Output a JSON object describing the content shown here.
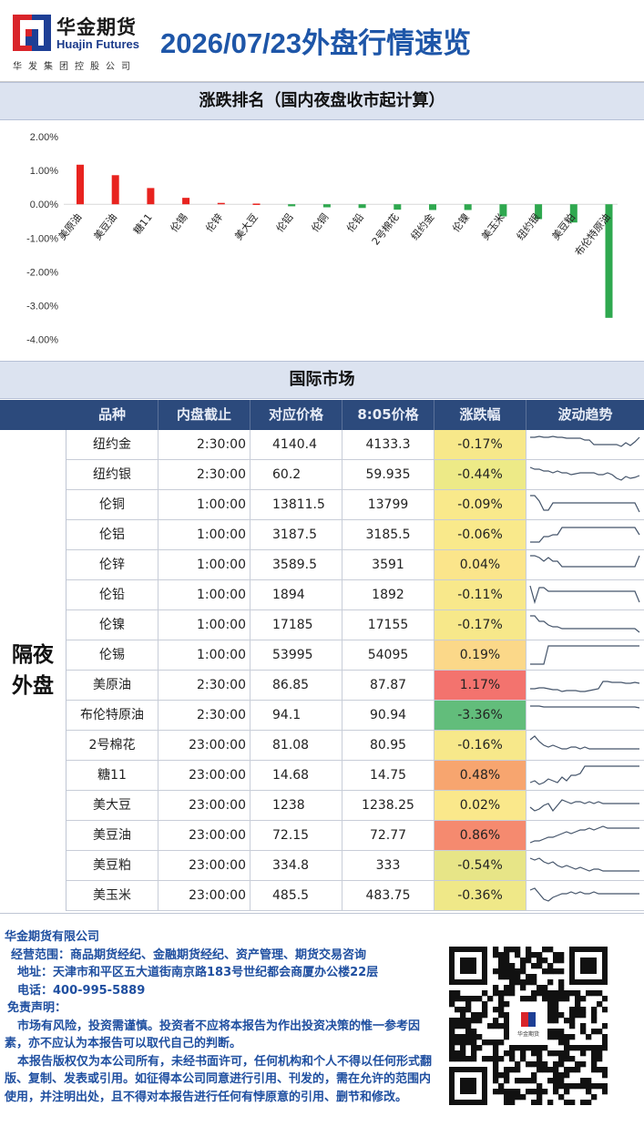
{
  "header": {
    "company_cn": "华金期货",
    "company_en": "Huajin Futures",
    "company_sub": "华发集团控股公司",
    "title": "2026/07/23外盘行情速览"
  },
  "chart_section_title": "涨跌排名（国内夜盘收市起计算）",
  "chart_data": {
    "type": "bar",
    "categories": [
      "美原油",
      "美豆油",
      "糖11",
      "伦锡",
      "伦锌",
      "美大豆",
      "伦铝",
      "伦铜",
      "伦铅",
      "2号棉花",
      "纽约金",
      "伦镍",
      "美玉米",
      "纽约银",
      "美豆粕",
      "布伦特原油"
    ],
    "values": [
      1.17,
      0.86,
      0.48,
      0.19,
      0.04,
      0.02,
      -0.06,
      -0.09,
      -0.11,
      -0.16,
      -0.17,
      -0.17,
      -0.36,
      -0.44,
      -0.54,
      -3.36
    ],
    "yticks": [
      "2.00%",
      "1.00%",
      "0.00%",
      "-1.00%",
      "-2.00%",
      "-3.00%",
      "-4.00%"
    ],
    "ylim": [
      -4,
      2
    ],
    "colors": {
      "up": "#e8231f",
      "down": "#2fa84f"
    }
  },
  "table_section_title": "国际市场",
  "table": {
    "headers": [
      "品种",
      "内盘截止",
      "对应价格",
      "8:05价格",
      "涨跌幅",
      "波动趋势"
    ],
    "side_label": "隔夜外盘",
    "rows": [
      {
        "name": "纽约金",
        "time": "2:30:00",
        "p1": "4140.4",
        "p2": "4133.3",
        "chg": "-0.17%",
        "bg": "#f7e88a",
        "spark": [
          6,
          6,
          5,
          6,
          6,
          5,
          6,
          6,
          7,
          7,
          7,
          7,
          9,
          9,
          14,
          14,
          14,
          14,
          14,
          14,
          16,
          12,
          15,
          11,
          6
        ]
      },
      {
        "name": "纽约银",
        "time": "2:30:00",
        "p1": "60.2",
        "p2": "59.935",
        "chg": "-0.44%",
        "bg": "#edea87",
        "spark": [
          6,
          8,
          8,
          10,
          10,
          12,
          10,
          12,
          12,
          14,
          13,
          12,
          12,
          12,
          12,
          14,
          14,
          12,
          14,
          18,
          20,
          16,
          18,
          17,
          15
        ]
      },
      {
        "name": "伦铜",
        "time": "1:00:00",
        "p1": "13811.5",
        "p2": "13799",
        "chg": "-0.09%",
        "bg": "#f9e98b",
        "spark": [
          4,
          4,
          10,
          20,
          20,
          12,
          12,
          12,
          12,
          12,
          12,
          12,
          12,
          12,
          12,
          12,
          12,
          12,
          12,
          12,
          12,
          12,
          12,
          12,
          22
        ]
      },
      {
        "name": "伦铝",
        "time": "1:00:00",
        "p1": "3187.5",
        "p2": "3185.5",
        "chg": "-0.06%",
        "bg": "#f9e98b",
        "spark": [
          22,
          22,
          22,
          16,
          16,
          14,
          14,
          6,
          6,
          6,
          6,
          6,
          6,
          6,
          6,
          6,
          6,
          6,
          6,
          6,
          6,
          6,
          6,
          6,
          14
        ]
      },
      {
        "name": "伦锌",
        "time": "1:00:00",
        "p1": "3589.5",
        "p2": "3591",
        "chg": "0.04%",
        "bg": "#fbe58b",
        "spark": [
          4,
          4,
          6,
          10,
          6,
          10,
          10,
          16,
          16,
          16,
          16,
          16,
          16,
          16,
          16,
          16,
          16,
          16,
          16,
          16,
          16,
          16,
          16,
          16,
          4
        ]
      },
      {
        "name": "伦铅",
        "time": "1:00:00",
        "p1": "1894",
        "p2": "1892",
        "chg": "-0.11%",
        "bg": "#f8e88b",
        "spark": [
          4,
          22,
          6,
          6,
          10,
          10,
          10,
          10,
          10,
          10,
          10,
          10,
          10,
          10,
          10,
          10,
          10,
          10,
          10,
          10,
          10,
          10,
          10,
          10,
          22
        ]
      },
      {
        "name": "伦镍",
        "time": "1:00:00",
        "p1": "17185",
        "p2": "17155",
        "chg": "-0.17%",
        "bg": "#f7e88a",
        "spark": [
          4,
          4,
          10,
          10,
          14,
          16,
          16,
          18,
          18,
          18,
          18,
          18,
          18,
          18,
          18,
          18,
          18,
          18,
          18,
          18,
          18,
          18,
          18,
          18,
          22
        ]
      },
      {
        "name": "伦锡",
        "time": "1:00:00",
        "p1": "53995",
        "p2": "54095",
        "chg": "0.19%",
        "bg": "#fbd889",
        "spark": [
          24,
          24,
          24,
          24,
          4,
          4,
          4,
          4,
          4,
          4,
          4,
          4,
          4,
          4,
          4,
          4,
          4,
          4,
          4,
          4,
          4,
          4,
          4,
          4,
          4
        ]
      },
      {
        "name": "美原油",
        "time": "2:30:00",
        "p1": "86.85",
        "p2": "87.87",
        "chg": "1.17%",
        "bg": "#f3736e",
        "spark": [
          18,
          18,
          17,
          17,
          18,
          19,
          19,
          21,
          20,
          20,
          20,
          21,
          21,
          20,
          19,
          18,
          10,
          10,
          11,
          11,
          11,
          12,
          12,
          11,
          12
        ]
      },
      {
        "name": "布伦特原油",
        "time": "2:30:00",
        "p1": "94.1",
        "p2": "90.94",
        "chg": "-3.36%",
        "bg": "#62bd7b",
        "spark": [
          4,
          4,
          4,
          5,
          5,
          5,
          5,
          5,
          5,
          5,
          5,
          5,
          5,
          5,
          5,
          5,
          5,
          5,
          5,
          5,
          5,
          5,
          5,
          5,
          6
        ]
      },
      {
        "name": "2号棉花",
        "time": "23:00:00",
        "p1": "81.08",
        "p2": "80.95",
        "chg": "-0.16%",
        "bg": "#f7e88a",
        "spark": [
          8,
          4,
          10,
          14,
          16,
          14,
          16,
          18,
          18,
          16,
          16,
          18,
          16,
          18,
          18,
          18,
          18,
          18,
          18,
          18,
          18,
          18,
          18,
          18,
          18
        ]
      },
      {
        "name": "糖11",
        "time": "23:00:00",
        "p1": "14.68",
        "p2": "14.75",
        "chg": "0.48%",
        "bg": "#f7a56f",
        "spark": [
          22,
          20,
          24,
          22,
          18,
          20,
          22,
          16,
          20,
          14,
          14,
          12,
          4,
          4,
          4,
          4,
          4,
          4,
          4,
          4,
          4,
          4,
          4,
          4,
          4
        ]
      },
      {
        "name": "美大豆",
        "time": "23:00:00",
        "p1": "1238",
        "p2": "1238.25",
        "chg": "0.02%",
        "bg": "#fae88b",
        "spark": [
          16,
          20,
          18,
          14,
          12,
          20,
          14,
          8,
          10,
          12,
          10,
          10,
          12,
          10,
          12,
          10,
          12,
          12,
          12,
          12,
          12,
          12,
          12,
          12,
          12
        ]
      },
      {
        "name": "美豆油",
        "time": "23:00:00",
        "p1": "72.15",
        "p2": "72.77",
        "chg": "0.86%",
        "bg": "#f58a6f",
        "spark": [
          22,
          20,
          20,
          18,
          16,
          16,
          14,
          12,
          10,
          12,
          10,
          8,
          8,
          6,
          8,
          6,
          4,
          6,
          6,
          6,
          6,
          6,
          6,
          6,
          6
        ]
      },
      {
        "name": "美豆粕",
        "time": "23:00:00",
        "p1": "334.8",
        "p2": "333",
        "chg": "-0.54%",
        "bg": "#e7e587",
        "spark": [
          6,
          8,
          6,
          10,
          12,
          10,
          14,
          16,
          14,
          16,
          18,
          16,
          18,
          20,
          18,
          18,
          20,
          20,
          20,
          20,
          20,
          20,
          20,
          20,
          20
        ]
      },
      {
        "name": "美玉米",
        "time": "23:00:00",
        "p1": "485.5",
        "p2": "483.75",
        "chg": "-0.36%",
        "bg": "#efe888",
        "spark": [
          8,
          6,
          12,
          18,
          20,
          16,
          14,
          12,
          12,
          10,
          12,
          10,
          12,
          12,
          10,
          12,
          12,
          12,
          12,
          12,
          12,
          12,
          12,
          12,
          12
        ]
      }
    ]
  },
  "footer": {
    "company": "华金期货有限公司",
    "scope": "经营范围：商品期货经纪、金融期货经纪、资产管理、期货交易咨询",
    "address": "地址：天津市和平区五大道街南京路183号世纪都会商厦办公楼22层",
    "phone": "电话：400-995-5889",
    "disclaimer_title": "免责声明：",
    "disclaimer_1": "市场有风险，投资需谨慎。投资者不应将本报告为作出投资决策的惟一参考因素，亦不应认为本报告可以取代自己的判断。",
    "disclaimer_2": "本报告版权仅为本公司所有，未经书面许可，任何机构和个人不得以任何形式翻版、复制、发表或引用。如征得本公司同意进行引用、刊发的，需在允许的范围内使用，并注明出处，且不得对本报告进行任何有悖原意的引用、删节和修改。",
    "qr_logo_text": "华金期货"
  }
}
